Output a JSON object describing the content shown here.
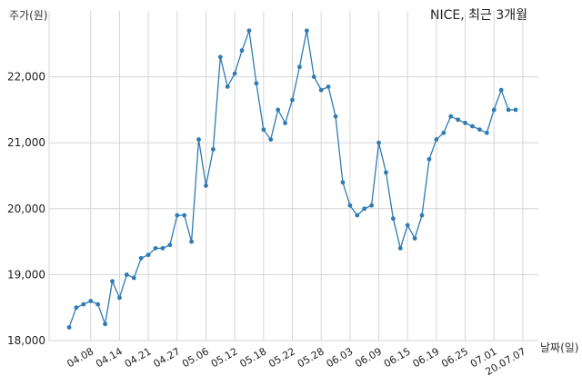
{
  "chart_data": {
    "type": "line",
    "title": "NICE, 최근 3개월",
    "ylabel": "주가(원)",
    "xlabel": "날짜(일)",
    "ylim": [
      18000,
      23000
    ],
    "yticks": [
      18000,
      19000,
      20000,
      21000,
      22000
    ],
    "ytick_labels": [
      "18,000",
      "19,000",
      "20,000",
      "21,000",
      "22,000"
    ],
    "grid": true,
    "line_color": "#2f7bb3",
    "grid_color": "#d6d6d6",
    "xtick_labels": [
      "04.08",
      "04.14",
      "04.21",
      "04.27",
      "05.06",
      "05.12",
      "05.18",
      "05.22",
      "05.28",
      "06.03",
      "06.09",
      "06.15",
      "06.19",
      "06.25",
      "07.01",
      "20.07.07"
    ],
    "xtick_indices": [
      3,
      7,
      11,
      15,
      19,
      23,
      27,
      31,
      35,
      39,
      43,
      47,
      51,
      55,
      59,
      63
    ],
    "series": [
      {
        "values": [
          18200,
          18500,
          18550,
          18600,
          18550,
          18250,
          18900,
          18650,
          19000,
          18950,
          19250,
          19300,
          19400,
          19400,
          19450,
          19900,
          19900,
          19500,
          21050,
          20350,
          20900,
          22300,
          21850,
          22050,
          22400,
          22700,
          21900,
          21200,
          21050,
          21500,
          21300,
          21650,
          22150,
          22700,
          22000,
          21800,
          21850,
          21400,
          20400,
          20050,
          19900,
          20000,
          20050,
          21000,
          20550,
          19850,
          19400,
          19750,
          19550,
          19900,
          20750,
          21050,
          21150,
          21400,
          21350,
          21300,
          21250,
          21200,
          21150,
          21500,
          21800,
          21500,
          21500
        ]
      }
    ]
  }
}
